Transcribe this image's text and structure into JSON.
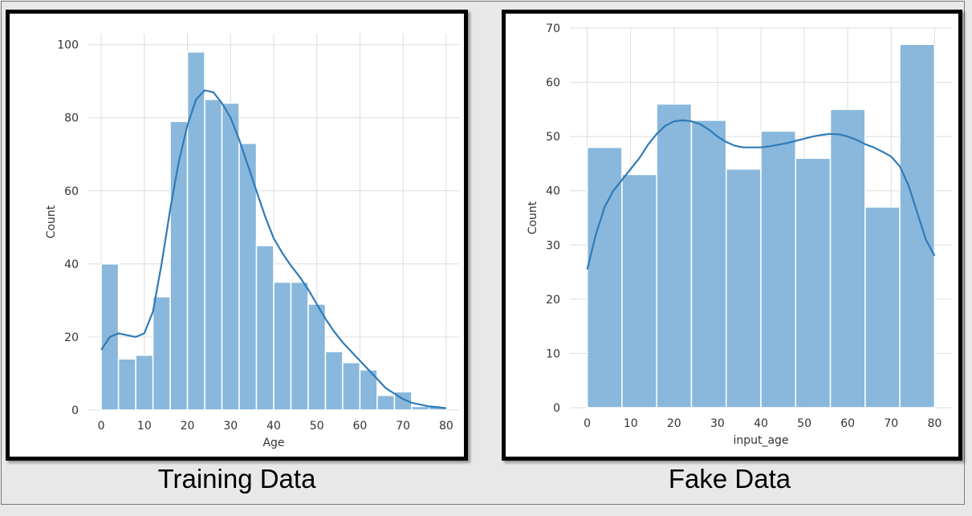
{
  "chart_data": [
    {
      "type": "histogram",
      "xlabel": "Age",
      "ylabel": "Count",
      "xlim": [
        -3,
        83
      ],
      "ylim": [
        0,
        103
      ],
      "xticks": [
        0,
        10,
        20,
        30,
        40,
        50,
        60,
        70,
        80
      ],
      "yticks": [
        0,
        20,
        40,
        60,
        80,
        100
      ],
      "grid": true,
      "bar_color": "#7fb2d9",
      "kde_color": "#2f7bb8",
      "bins": [
        {
          "x0": 0,
          "x1": 4,
          "count": 40
        },
        {
          "x0": 4,
          "x1": 8,
          "count": 14
        },
        {
          "x0": 8,
          "x1": 12,
          "count": 15
        },
        {
          "x0": 12,
          "x1": 16,
          "count": 31
        },
        {
          "x0": 16,
          "x1": 20,
          "count": 79
        },
        {
          "x0": 20,
          "x1": 24,
          "count": 98
        },
        {
          "x0": 24,
          "x1": 28,
          "count": 85
        },
        {
          "x0": 28,
          "x1": 32,
          "count": 84
        },
        {
          "x0": 32,
          "x1": 36,
          "count": 73
        },
        {
          "x0": 36,
          "x1": 40,
          "count": 45
        },
        {
          "x0": 40,
          "x1": 44,
          "count": 35
        },
        {
          "x0": 44,
          "x1": 48,
          "count": 35
        },
        {
          "x0": 48,
          "x1": 52,
          "count": 29
        },
        {
          "x0": 52,
          "x1": 56,
          "count": 16
        },
        {
          "x0": 56,
          "x1": 60,
          "count": 13
        },
        {
          "x0": 60,
          "x1": 64,
          "count": 11
        },
        {
          "x0": 64,
          "x1": 68,
          "count": 4
        },
        {
          "x0": 68,
          "x1": 72,
          "count": 5
        },
        {
          "x0": 72,
          "x1": 76,
          "count": 1
        },
        {
          "x0": 76,
          "x1": 80,
          "count": 1
        }
      ],
      "kde": [
        [
          0,
          16.5
        ],
        [
          2,
          20
        ],
        [
          4,
          21
        ],
        [
          6,
          20.5
        ],
        [
          8,
          20
        ],
        [
          10,
          21
        ],
        [
          12,
          27
        ],
        [
          14,
          40
        ],
        [
          16,
          55
        ],
        [
          18,
          68
        ],
        [
          20,
          78
        ],
        [
          22,
          85
        ],
        [
          24,
          87.5
        ],
        [
          26,
          87
        ],
        [
          28,
          84
        ],
        [
          30,
          80
        ],
        [
          32,
          74
        ],
        [
          34,
          67
        ],
        [
          36,
          60
        ],
        [
          38,
          53
        ],
        [
          40,
          47
        ],
        [
          42,
          43
        ],
        [
          44,
          39.5
        ],
        [
          46,
          36.5
        ],
        [
          48,
          33
        ],
        [
          50,
          29
        ],
        [
          52,
          25
        ],
        [
          54,
          21.5
        ],
        [
          56,
          18.5
        ],
        [
          58,
          16
        ],
        [
          60,
          13.5
        ],
        [
          62,
          11
        ],
        [
          64,
          8.5
        ],
        [
          66,
          6
        ],
        [
          68,
          4.5
        ],
        [
          70,
          3
        ],
        [
          72,
          2
        ],
        [
          74,
          1.5
        ],
        [
          76,
          1
        ],
        [
          78,
          0.8
        ],
        [
          80,
          0.5
        ]
      ]
    },
    {
      "type": "histogram",
      "xlabel": "input_age",
      "ylabel": "Count",
      "xlim": [
        -4,
        84
      ],
      "ylim": [
        0,
        70
      ],
      "xticks": [
        0,
        10,
        20,
        30,
        40,
        50,
        60,
        70,
        80
      ],
      "yticks": [
        0,
        10,
        20,
        30,
        40,
        50,
        60,
        70
      ],
      "grid": true,
      "bar_color": "#7fb2d9",
      "kde_color": "#2f7bb8",
      "bins": [
        {
          "x0": 0,
          "x1": 8,
          "count": 48
        },
        {
          "x0": 8,
          "x1": 16,
          "count": 43
        },
        {
          "x0": 16,
          "x1": 24,
          "count": 56
        },
        {
          "x0": 24,
          "x1": 32,
          "count": 53
        },
        {
          "x0": 32,
          "x1": 40,
          "count": 44
        },
        {
          "x0": 40,
          "x1": 48,
          "count": 51
        },
        {
          "x0": 48,
          "x1": 56,
          "count": 46
        },
        {
          "x0": 56,
          "x1": 64,
          "count": 55
        },
        {
          "x0": 64,
          "x1": 72,
          "count": 37
        },
        {
          "x0": 72,
          "x1": 80,
          "count": 67
        }
      ],
      "kde": [
        [
          0,
          25.5
        ],
        [
          2,
          32
        ],
        [
          4,
          37
        ],
        [
          6,
          40
        ],
        [
          8,
          42
        ],
        [
          10,
          44
        ],
        [
          12,
          46
        ],
        [
          14,
          48.5
        ],
        [
          16,
          50.5
        ],
        [
          18,
          52
        ],
        [
          20,
          52.8
        ],
        [
          22,
          53
        ],
        [
          24,
          52.8
        ],
        [
          26,
          52.3
        ],
        [
          28,
          51.3
        ],
        [
          30,
          50
        ],
        [
          32,
          49
        ],
        [
          34,
          48.3
        ],
        [
          36,
          48
        ],
        [
          38,
          48
        ],
        [
          40,
          48
        ],
        [
          42,
          48.2
        ],
        [
          44,
          48.5
        ],
        [
          46,
          48.8
        ],
        [
          48,
          49.2
        ],
        [
          50,
          49.6
        ],
        [
          52,
          50
        ],
        [
          54,
          50.3
        ],
        [
          56,
          50.5
        ],
        [
          58,
          50.4
        ],
        [
          60,
          50
        ],
        [
          62,
          49.4
        ],
        [
          64,
          48.6
        ],
        [
          66,
          48
        ],
        [
          68,
          47.2
        ],
        [
          70,
          46.3
        ],
        [
          72,
          44.5
        ],
        [
          74,
          41
        ],
        [
          76,
          36
        ],
        [
          78,
          31
        ],
        [
          80,
          28
        ]
      ]
    }
  ],
  "captions": {
    "left": "Training Data",
    "right": "Fake Data"
  }
}
